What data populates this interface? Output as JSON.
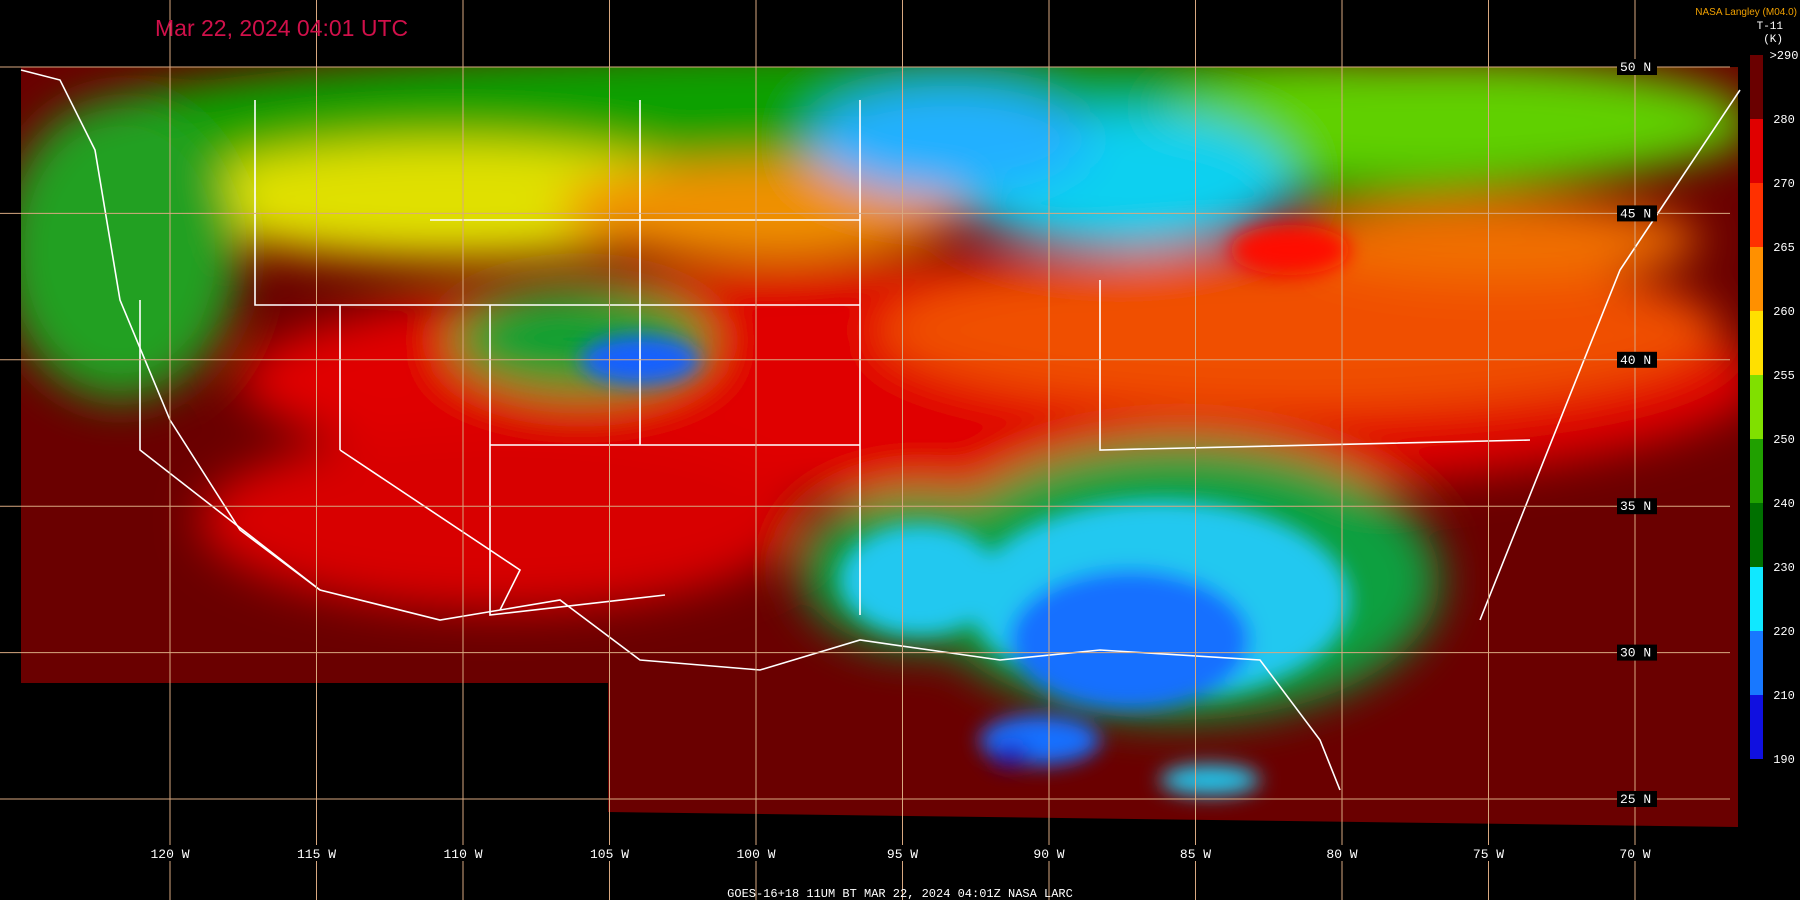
{
  "header": {
    "timestamp": "Mar 22, 2024 04:01 UTC",
    "credit": "NASA Langley (M04.0)",
    "product": "T-11",
    "unit": "(K)"
  },
  "colorbar": {
    "labels": [
      ">290",
      "280",
      "270",
      "265",
      "260",
      "255",
      "250",
      "240",
      "230",
      "220",
      "210",
      "190"
    ]
  },
  "latitude_labels": [
    "50 N",
    "45 N",
    "40 N",
    "35 N",
    "30 N",
    "25 N"
  ],
  "longitude_labels": [
    "120 W",
    "115 W",
    "110 W",
    "105 W",
    "100 W",
    "95 W",
    "90 W",
    "85 W",
    "80 W",
    "75 W",
    "70 W"
  ],
  "footer": "GOES-16+18  11UM BT   MAR 22, 2024 04:01Z   NASA LARC"
}
